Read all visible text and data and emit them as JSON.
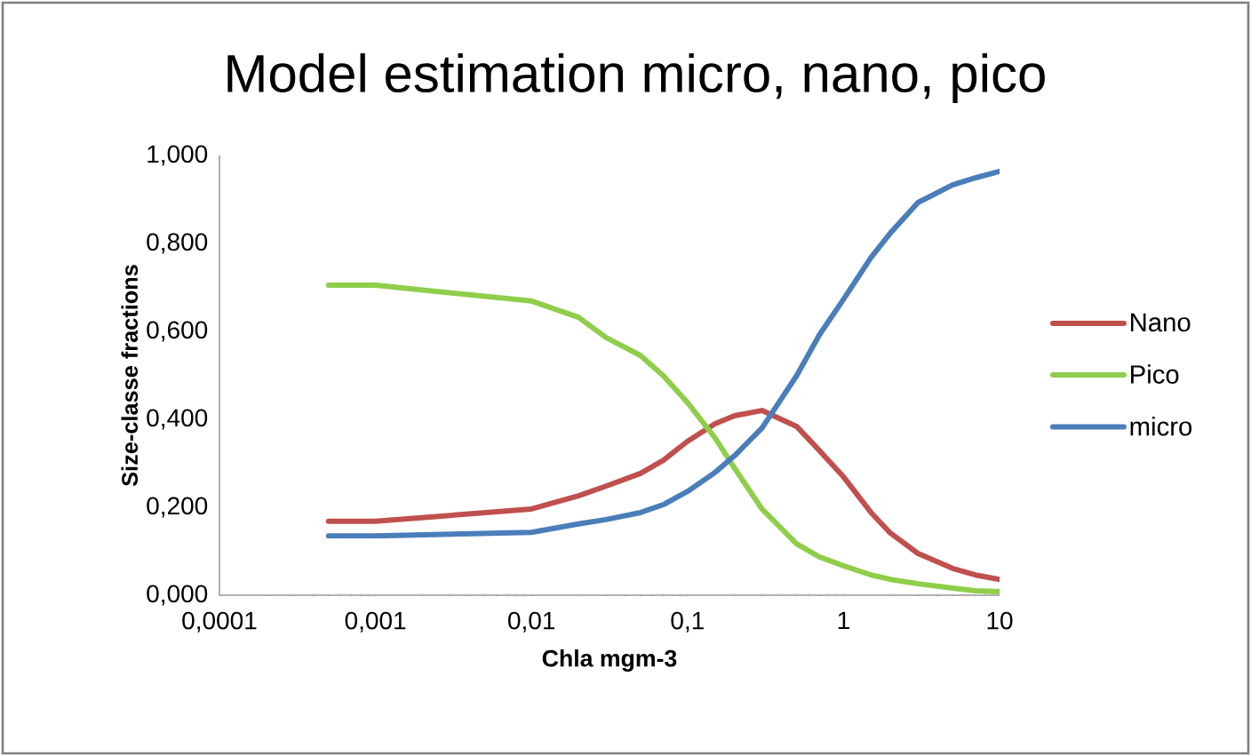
{
  "chart_data": {
    "type": "line",
    "title": "Model estimation  micro, nano, pico",
    "xlabel": "Chla mgm-3",
    "ylabel": "Size-classe fractions",
    "x": [
      0.0005,
      0.001,
      0.01,
      0.02,
      0.03,
      0.05,
      0.07,
      0.1,
      0.15,
      0.2,
      0.3,
      0.5,
      0.7,
      1,
      1.5,
      2,
      3,
      5,
      7,
      10
    ],
    "series": [
      {
        "name": "Nano",
        "color": "#c0504d",
        "values": [
          0.168,
          0.168,
          0.196,
          0.226,
          0.248,
          0.277,
          0.307,
          0.35,
          0.39,
          0.408,
          0.42,
          0.384,
          0.329,
          0.269,
          0.188,
          0.141,
          0.095,
          0.061,
          0.046,
          0.036
        ]
      },
      {
        "name": "Pico",
        "color": "#8fce4a",
        "values": [
          0.705,
          0.705,
          0.669,
          0.632,
          0.586,
          0.545,
          0.499,
          0.438,
          0.358,
          0.289,
          0.196,
          0.117,
          0.087,
          0.067,
          0.046,
          0.036,
          0.026,
          0.016,
          0.01,
          0.008
        ]
      },
      {
        "name": "micro",
        "color": "#4a7ebb",
        "values": [
          0.135,
          0.135,
          0.143,
          0.162,
          0.172,
          0.188,
          0.206,
          0.236,
          0.279,
          0.317,
          0.38,
          0.499,
          0.592,
          0.673,
          0.768,
          0.824,
          0.893,
          0.933,
          0.949,
          0.964
        ]
      }
    ],
    "log": "x",
    "xlim": [
      0.0001,
      10
    ],
    "ylim": [
      0,
      1
    ],
    "xticks": [
      {
        "value": 0.0001,
        "label": "0,0001"
      },
      {
        "value": 0.001,
        "label": "0,001"
      },
      {
        "value": 0.01,
        "label": "0,01"
      },
      {
        "value": 0.1,
        "label": "0,1"
      },
      {
        "value": 1,
        "label": "1"
      },
      {
        "value": 10,
        "label": "10"
      }
    ],
    "yticks": [
      {
        "value": 0,
        "label": "0,000"
      },
      {
        "value": 0.2,
        "label": "0,200"
      },
      {
        "value": 0.4,
        "label": "0,400"
      },
      {
        "value": 0.6,
        "label": "0,600"
      },
      {
        "value": 0.8,
        "label": "0,800"
      },
      {
        "value": 1,
        "label": "1,000"
      }
    ],
    "legend": "right",
    "grid": false,
    "marker": "none",
    "line_style": "solid"
  }
}
